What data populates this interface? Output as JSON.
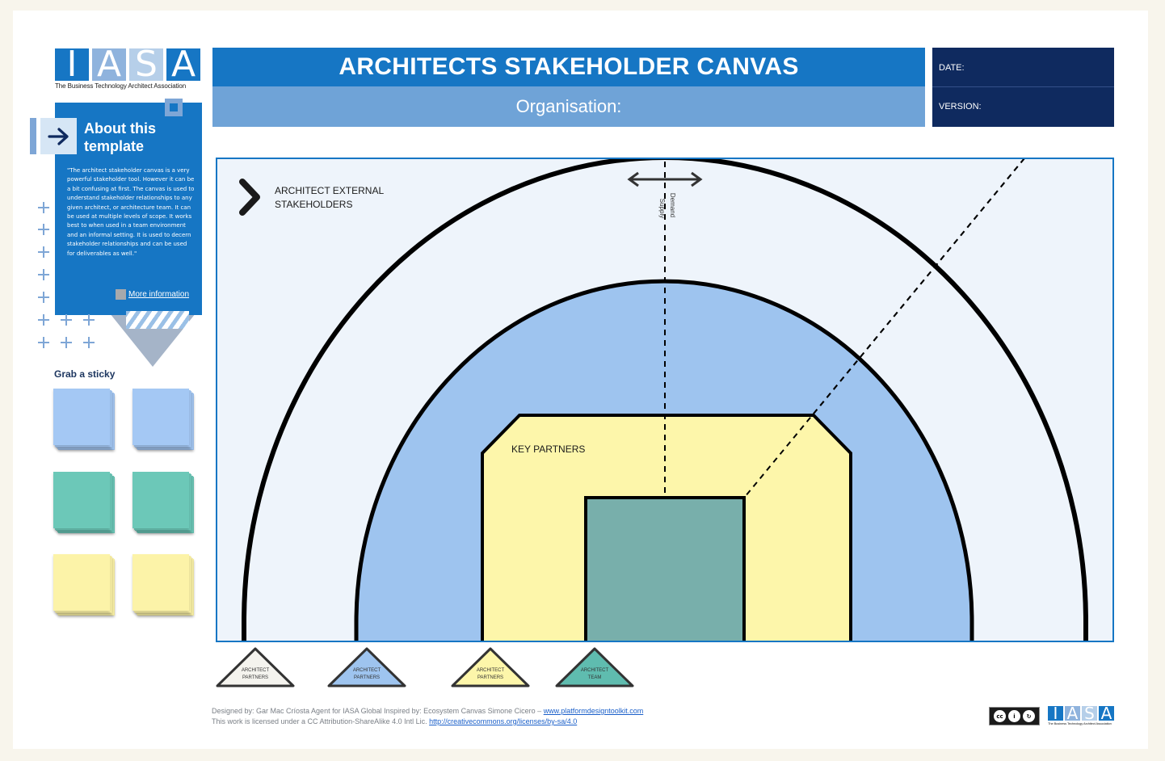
{
  "header": {
    "title": "ARCHITECTS STAKEHOLDER CANVAS",
    "organisation": "Organisation:",
    "date_label": "DATE:",
    "version_label": "VERSION:"
  },
  "logo": {
    "letters": [
      "I",
      "A",
      "S",
      "A"
    ],
    "tagline": "The Business Technology Architect Association",
    "colors": [
      "#1676c4",
      "#8fb3dd",
      "#b6cfe9",
      "#1676c4"
    ]
  },
  "about": {
    "title": "About this template",
    "body": "\"The architect stakeholder canvas is a very powerful stakeholder tool. However it can be a bit confusing at first. The canvas is used to understand stakeholder relationships to any given architect, or architecture team. It can be used at multiple levels of scope. It works best to when used in a team environment and an informal setting. It is used to decern stakeholder relationships and can be used for deliverables as well.\"",
    "link": "More information",
    "icon": "arrow-right-icon"
  },
  "stickies": {
    "label": "Grab a sticky",
    "colors": [
      "#a4c8f4",
      "#a4c8f4",
      "#6cc8b8",
      "#6cc8b8",
      "#fcf3a8",
      "#fcf3a8"
    ]
  },
  "canvas": {
    "external_label_line1": "ARCHITECT EXTERNAL",
    "external_label_line2": "STAKEHOLDERS",
    "key_partners": "KEY PARTNERS",
    "supply": "Supply",
    "demand": "Demand",
    "colors": {
      "outer_bg": "#eef4fb",
      "mid_ring": "#9ec4ef",
      "partners": "#fdf6aa",
      "team": "#78afab",
      "border": "#1676c4"
    }
  },
  "legend": [
    {
      "line1": "ARCHITECT",
      "line2": "PARTNERS",
      "color": "#f4f3ee"
    },
    {
      "line1": "ARCHITECT",
      "line2": "PARTNERS",
      "color": "#9ec4ef"
    },
    {
      "line1": "ARCHITECT",
      "line2": "PARTNERS",
      "color": "#fdf6aa"
    },
    {
      "line1": "ARCHITECT",
      "line2": "TEAM",
      "color": "#5fbcaf"
    }
  ],
  "footer": {
    "line1_text": "Designed by: Gar Mac Críosta Agent for IASA Global Inspired by: Ecosystem Canvas Simone Cicero – ",
    "line1_link": "www.platformdesigntoolkit.com",
    "line2_text": "This work is licensed under a CC Attribution-ShareAlike 4.0 Intl Lic. ",
    "line2_link": "http://creativecommons.org/licenses/by-sa/4.0",
    "cc_badge": "BY SA"
  }
}
